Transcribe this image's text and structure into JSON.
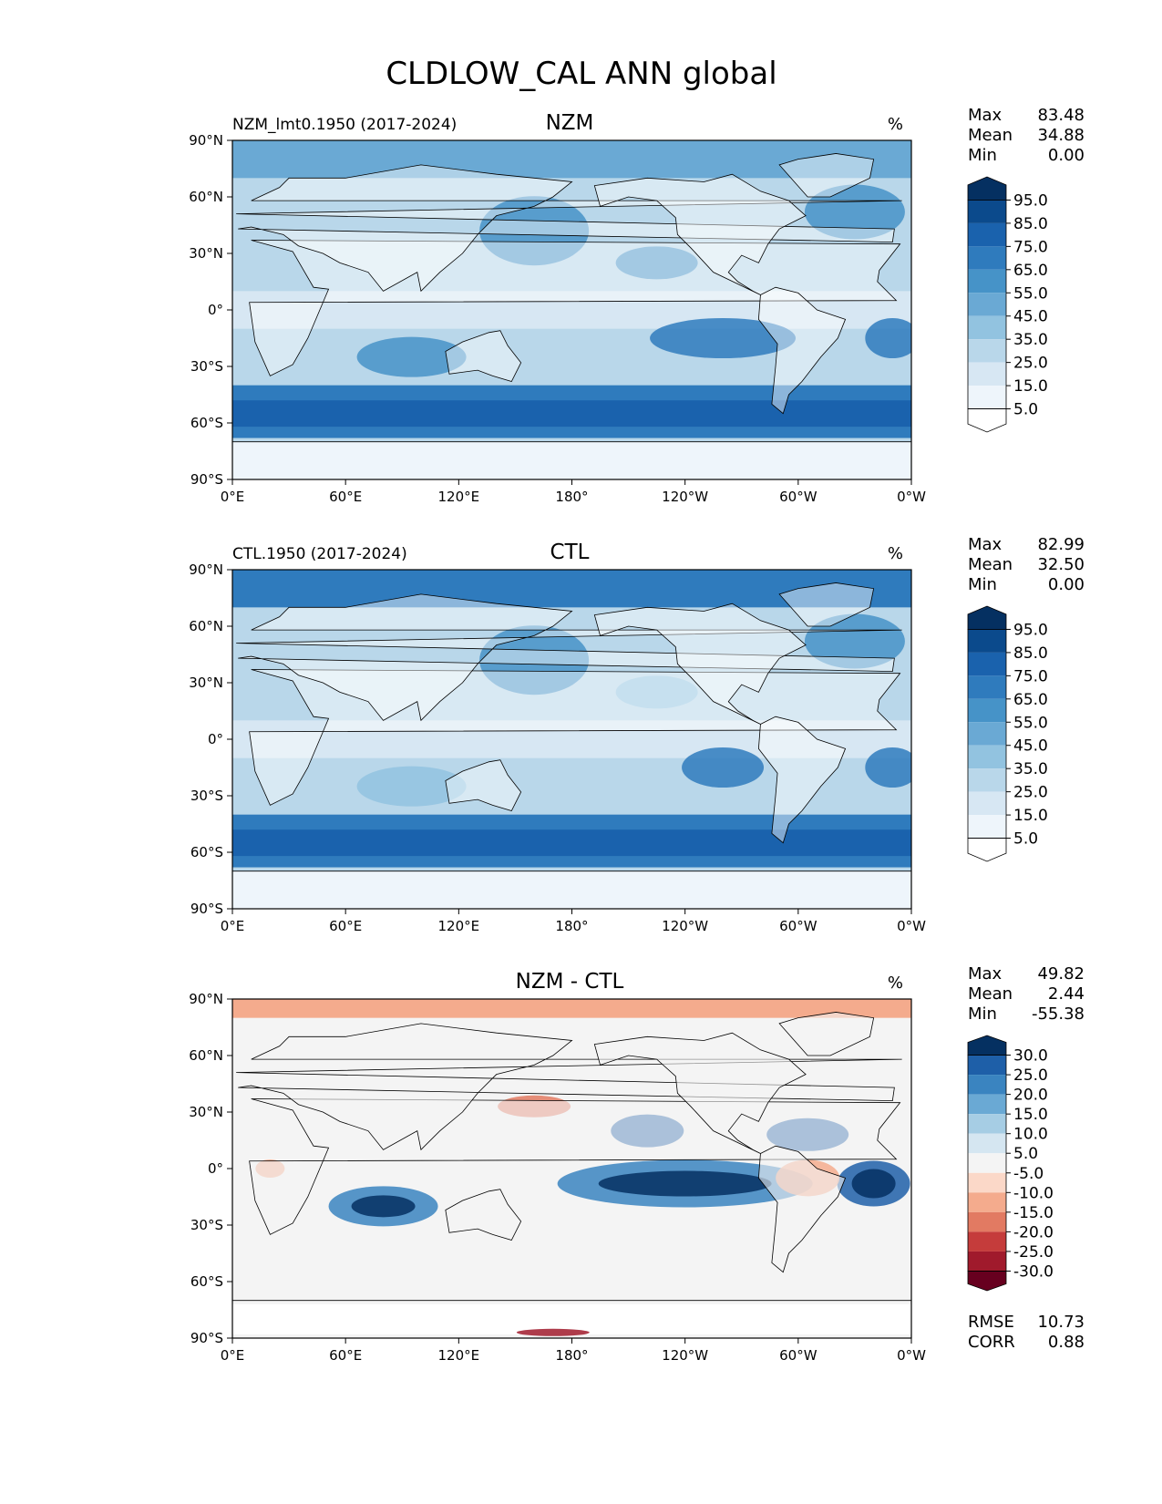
{
  "figure_title": "CLDLOW_CAL ANN global",
  "chart_data": [
    {
      "type": "heatmap",
      "title": "NZM",
      "left_title": "NZM_lmt0.1950 (2017-2024)",
      "units": "%",
      "stats": {
        "max_label": "Max",
        "max": "83.48",
        "mean_label": "Mean",
        "mean": "34.88",
        "min_label": "Min",
        "min": "0.00"
      },
      "xticks": [
        "0°E",
        "60°E",
        "120°E",
        "180°",
        "120°W",
        "60°W",
        "0°W"
      ],
      "yticks": [
        "90°N",
        "60°N",
        "30°N",
        "0°",
        "30°S",
        "60°S",
        "90°S"
      ],
      "lon_range": [
        0,
        360
      ],
      "lat_range": [
        -90,
        90
      ],
      "colorbar": {
        "levels": [
          "95.0",
          "85.0",
          "75.0",
          "65.0",
          "55.0",
          "45.0",
          "35.0",
          "25.0",
          "15.0",
          "5.0"
        ],
        "colors": [
          "#053061",
          "#0b4a8c",
          "#1a62ad",
          "#2f7bbd",
          "#4693c8",
          "#6aa9d4",
          "#92c3e0",
          "#b9d7ea",
          "#d7e7f3",
          "#eef5fb",
          "#ffffff"
        ]
      }
    },
    {
      "type": "heatmap",
      "title": "CTL",
      "left_title": "CTL.1950 (2017-2024)",
      "units": "%",
      "stats": {
        "max_label": "Max",
        "max": "82.99",
        "mean_label": "Mean",
        "mean": "32.50",
        "min_label": "Min",
        "min": "0.00"
      },
      "xticks": [
        "0°E",
        "60°E",
        "120°E",
        "180°",
        "120°W",
        "60°W",
        "0°W"
      ],
      "yticks": [
        "90°N",
        "60°N",
        "30°N",
        "0°",
        "30°S",
        "60°S",
        "90°S"
      ],
      "lon_range": [
        0,
        360
      ],
      "lat_range": [
        -90,
        90
      ],
      "colorbar": {
        "levels": [
          "95.0",
          "85.0",
          "75.0",
          "65.0",
          "55.0",
          "45.0",
          "35.0",
          "25.0",
          "15.0",
          "5.0"
        ],
        "colors": [
          "#053061",
          "#0b4a8c",
          "#1a62ad",
          "#2f7bbd",
          "#4693c8",
          "#6aa9d4",
          "#92c3e0",
          "#b9d7ea",
          "#d7e7f3",
          "#eef5fb",
          "#ffffff"
        ]
      }
    },
    {
      "type": "heatmap",
      "title": "NZM - CTL",
      "left_title": "",
      "units": "%",
      "stats": {
        "max_label": "Max",
        "max": "49.82",
        "mean_label": "Mean",
        "mean": "2.44",
        "min_label": "Min",
        "min": "-55.38"
      },
      "extra_stats": {
        "rmse_label": "RMSE",
        "rmse": "10.73",
        "corr_label": "CORR",
        "corr": "0.88"
      },
      "xticks": [
        "0°E",
        "60°E",
        "120°E",
        "180°",
        "120°W",
        "60°W",
        "0°W"
      ],
      "yticks": [
        "90°N",
        "60°N",
        "30°N",
        "0°",
        "30°S",
        "60°S",
        "90°S"
      ],
      "lon_range": [
        0,
        360
      ],
      "lat_range": [
        -90,
        90
      ],
      "colorbar": {
        "levels": [
          "30.0",
          "25.0",
          "20.0",
          "15.0",
          "10.0",
          "5.0",
          "-5.0",
          "-10.0",
          "-15.0",
          "-20.0",
          "-25.0",
          "-30.0"
        ],
        "colors": [
          "#053061",
          "#1e5fa8",
          "#3a84c0",
          "#6aa9d4",
          "#a6cde4",
          "#d5e6f1",
          "#f4f4f4",
          "#fbd8c8",
          "#f4ab8d",
          "#e27a62",
          "#c53c3b",
          "#a01a2c",
          "#67001f"
        ]
      }
    }
  ]
}
